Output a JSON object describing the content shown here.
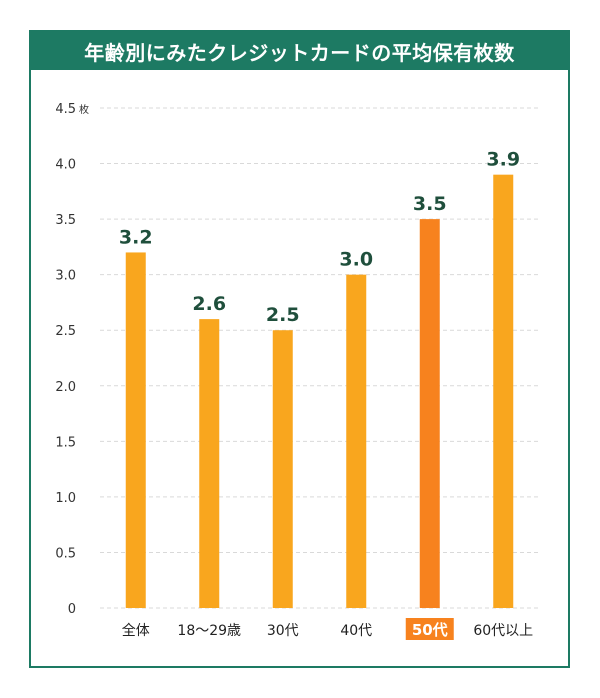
{
  "title": "年齢別にみたクレジットカードの平均保有枚数",
  "colors": {
    "frame": "#1d7a63",
    "bar": "#f9a61e",
    "bar_highlight": "#f7821e",
    "grid": "#d9d9d9",
    "data_label": "#1f4f3c"
  },
  "chart_data": {
    "type": "bar",
    "title": "年齢別にみたクレジットカードの平均保有枚数",
    "categories": [
      "全体",
      "18〜29歳",
      "30代",
      "40代",
      "50代",
      "60代以上"
    ],
    "values": [
      3.2,
      2.6,
      2.5,
      3.0,
      3.5,
      3.9
    ],
    "data_labels": [
      "3.2",
      "2.6",
      "2.5",
      "3.0",
      "3.5",
      "3.9"
    ],
    "highlight_category": "50代",
    "ylim": [
      0,
      4.5
    ],
    "yticks": [
      0,
      0.5,
      1.0,
      1.5,
      2.0,
      2.5,
      3.0,
      3.5,
      4.0,
      4.5
    ],
    "ytick_labels": [
      "0",
      "0.5",
      "1.0",
      "1.5",
      "2.0",
      "2.5",
      "3.0",
      "3.5",
      "4.0",
      "4.5"
    ],
    "y_unit": "枚",
    "grid": true,
    "xlabel": "",
    "ylabel": ""
  }
}
